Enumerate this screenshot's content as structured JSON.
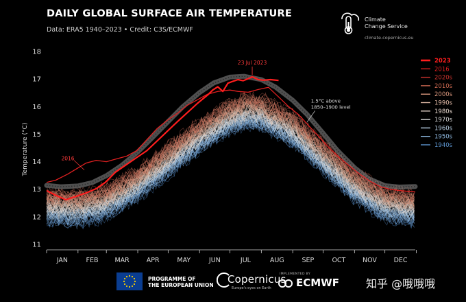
{
  "header": {
    "title": "DAILY GLOBAL SURFACE AIR TEMPERATURE",
    "subtitle": "Data: ERA5 1940–2023 • Credit: C3S/ECMWF"
  },
  "branding": {
    "c3s_line1": "Climate",
    "c3s_line2": "Change Service",
    "c3s_url": "climate.copernicus.eu"
  },
  "footer": {
    "eu_line1": "PROGRAMME OF",
    "eu_line2": "THE EUROPEAN UNION",
    "copernicus": "Copernicus",
    "copernicus_tagline": "Europe's eyes on Earth",
    "implemented_by": "IMPLEMENTED BY",
    "ecmwf": "ECMWF",
    "watermark": "知乎 @哦哦哦"
  },
  "chart_data": {
    "type": "line",
    "title": "DAILY GLOBAL SURFACE AIR TEMPERATURE",
    "ylabel": "Temperature (°C)",
    "xlabel": "",
    "ylim": [
      10.8,
      18.1
    ],
    "yticks": [
      11,
      12,
      13,
      14,
      15,
      16,
      17,
      18
    ],
    "x_unit": "day of year",
    "categories": [
      "JAN",
      "FEB",
      "MAR",
      "APR",
      "MAY",
      "JUN",
      "JUL",
      "AUG",
      "SEP",
      "OCT",
      "NOV",
      "DEC"
    ],
    "grid": false,
    "legend_position": "right",
    "legend": [
      {
        "label": "2023",
        "color": "#ff1e1e",
        "bold": true
      },
      {
        "label": "2016",
        "color": "#e02020",
        "bold": false
      },
      {
        "label": "2020s",
        "color": "#c8322d",
        "bold": false
      },
      {
        "label": "2010s",
        "color": "#d06a52",
        "bold": false
      },
      {
        "label": "2000s",
        "color": "#d9967c",
        "bold": false
      },
      {
        "label": "1990s",
        "color": "#e0b9a6",
        "bold": false
      },
      {
        "label": "1980s",
        "color": "#e6d6cc",
        "bold": false
      },
      {
        "label": "1970s",
        "color": "#dcdcdc",
        "bold": false
      },
      {
        "label": "1960s",
        "color": "#bcd3e8",
        "bold": false
      },
      {
        "label": "1950s",
        "color": "#8fb9e0",
        "bold": false
      },
      {
        "label": "1940s",
        "color": "#5d95d0",
        "bold": false
      }
    ],
    "annotations": {
      "peak_label": "23 Jul 2023",
      "peak_day": 204,
      "peak_value": 17.08,
      "label_2016": "2016",
      "label_2016_day": 22,
      "label_2016_value": 13.6,
      "band_label_line1": "1.5°C above",
      "band_label_line2": "1850–1900 level",
      "band_label_day": 262,
      "band_label_value": 15.7
    },
    "preindustrial_plus_1_5": {
      "x": [
        1,
        15,
        32,
        46,
        60,
        75,
        91,
        105,
        121,
        135,
        152,
        166,
        182,
        196,
        213,
        227,
        244,
        258,
        274,
        288,
        305,
        319,
        335,
        349,
        365
      ],
      "y": [
        13.14,
        13.09,
        13.12,
        13.24,
        13.49,
        13.86,
        14.35,
        14.86,
        15.46,
        15.98,
        16.51,
        16.86,
        17.07,
        17.1,
        16.98,
        16.71,
        16.23,
        15.72,
        15.03,
        14.41,
        13.78,
        13.38,
        13.13,
        13.08,
        13.1
      ]
    },
    "series": [
      {
        "name": "2023",
        "x": [
          1,
          10,
          20,
          31,
          41,
          50,
          59,
          69,
          80,
          90,
          100,
          110,
          120,
          130,
          140,
          150,
          160,
          165,
          170,
          175,
          180,
          185,
          190,
          195,
          200,
          204,
          210,
          215,
          222,
          230
        ],
        "y": [
          12.95,
          12.78,
          12.62,
          12.75,
          12.88,
          13.02,
          13.25,
          13.62,
          13.9,
          14.15,
          14.4,
          14.75,
          15.1,
          15.45,
          15.78,
          16.12,
          16.42,
          16.6,
          16.72,
          16.55,
          16.85,
          16.92,
          16.98,
          16.94,
          17.01,
          17.08,
          16.98,
          16.96,
          16.98,
          16.95
        ]
      },
      {
        "name": "2016",
        "x": [
          1,
          10,
          22,
          31,
          40,
          50,
          60,
          70,
          80,
          90,
          100,
          110,
          120,
          130,
          140,
          150,
          160,
          170,
          182,
          190,
          200,
          210,
          220,
          230,
          240,
          250,
          260,
          270,
          280,
          290,
          300,
          310,
          320,
          330,
          340,
          350,
          365
        ],
        "y": [
          13.25,
          13.33,
          13.55,
          13.75,
          13.95,
          14.05,
          14.0,
          14.1,
          14.2,
          14.4,
          14.8,
          15.2,
          15.5,
          15.75,
          16.05,
          16.25,
          16.45,
          16.55,
          16.6,
          16.55,
          16.52,
          16.62,
          16.7,
          16.35,
          16.0,
          15.7,
          15.3,
          14.9,
          14.5,
          14.15,
          13.85,
          13.55,
          13.3,
          13.1,
          13.0,
          12.95,
          12.9
        ]
      }
    ],
    "decade_envelopes": {
      "x": [
        1,
        32,
        60,
        91,
        121,
        152,
        182,
        200,
        213,
        244,
        274,
        305,
        335,
        365
      ],
      "1940s": [
        11.85,
        11.75,
        12.0,
        12.7,
        13.55,
        14.45,
        15.15,
        15.35,
        15.3,
        14.7,
        13.7,
        12.65,
        11.95,
        11.8
      ],
      "1980s": [
        12.35,
        12.3,
        12.5,
        13.15,
        14.0,
        14.85,
        15.55,
        15.75,
        15.7,
        15.1,
        14.1,
        13.05,
        12.45,
        12.3
      ],
      "2010s": [
        12.7,
        12.65,
        12.85,
        13.5,
        14.35,
        15.25,
        15.95,
        16.15,
        16.1,
        15.5,
        14.5,
        13.45,
        12.8,
        12.65
      ],
      "2020s": [
        12.9,
        12.85,
        13.05,
        13.7,
        14.55,
        15.45,
        16.15,
        16.35,
        16.3,
        15.7,
        14.7,
        13.65,
        13.0,
        12.85
      ]
    }
  }
}
